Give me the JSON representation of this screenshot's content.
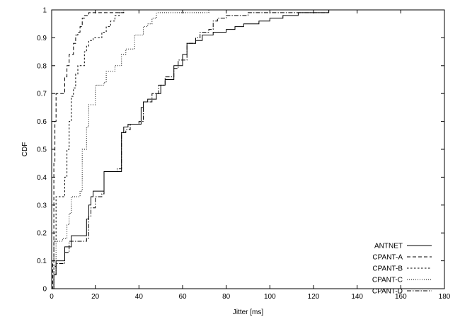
{
  "chart_data": {
    "type": "line",
    "title": "",
    "xlabel": "Jitter [ms]",
    "ylabel": "CDF",
    "xlim": [
      0,
      180
    ],
    "ylim": [
      0,
      1
    ],
    "xticks": [
      "0",
      "20",
      "40",
      "60",
      "80",
      "100",
      "120",
      "140",
      "160",
      "180"
    ],
    "yticks": [
      "0",
      "0.1",
      "0.2",
      "0.3",
      "0.4",
      "0.5",
      "0.6",
      "0.7",
      "0.8",
      "0.9",
      "1"
    ],
    "grid": false,
    "legend_position": "bottom-right",
    "series": [
      {
        "name": "ANTNET",
        "dash": "",
        "step": true,
        "points": [
          [
            0,
            0
          ],
          [
            1,
            0.05
          ],
          [
            2,
            0.1
          ],
          [
            5,
            0.1
          ],
          [
            6,
            0.15
          ],
          [
            9,
            0.19
          ],
          [
            15,
            0.19
          ],
          [
            16,
            0.25
          ],
          [
            17,
            0.3
          ],
          [
            18,
            0.33
          ],
          [
            19,
            0.35
          ],
          [
            23,
            0.35
          ],
          [
            24,
            0.42
          ],
          [
            31,
            0.42
          ],
          [
            32,
            0.56
          ],
          [
            33,
            0.58
          ],
          [
            35,
            0.59
          ],
          [
            40,
            0.59
          ],
          [
            41,
            0.65
          ],
          [
            42,
            0.67
          ],
          [
            44,
            0.68
          ],
          [
            48,
            0.7
          ],
          [
            50,
            0.73
          ],
          [
            52,
            0.75
          ],
          [
            55,
            0.75
          ],
          [
            56,
            0.8
          ],
          [
            60,
            0.84
          ],
          [
            62,
            0.88
          ],
          [
            66,
            0.89
          ],
          [
            69,
            0.91
          ],
          [
            72,
            0.91
          ],
          [
            74,
            0.92
          ],
          [
            80,
            0.93
          ],
          [
            84,
            0.94
          ],
          [
            88,
            0.95
          ],
          [
            92,
            0.95
          ],
          [
            95,
            0.96
          ],
          [
            100,
            0.97
          ],
          [
            106,
            0.98
          ],
          [
            113,
            0.99
          ],
          [
            127,
            1
          ],
          [
            180,
            1
          ]
        ]
      },
      {
        "name": "CPANT-A",
        "dash": "5,3",
        "step": true,
        "points": [
          [
            0,
            0
          ],
          [
            0.5,
            0.1
          ],
          [
            1,
            0.45
          ],
          [
            1.5,
            0.6
          ],
          [
            2,
            0.7
          ],
          [
            5,
            0.7
          ],
          [
            6,
            0.76
          ],
          [
            7,
            0.8
          ],
          [
            8,
            0.84
          ],
          [
            9,
            0.84
          ],
          [
            10,
            0.88
          ],
          [
            11,
            0.91
          ],
          [
            12,
            0.92
          ],
          [
            13,
            0.94
          ],
          [
            14,
            0.97
          ],
          [
            15,
            0.98
          ],
          [
            17,
            0.99
          ],
          [
            33,
            1
          ],
          [
            180,
            1
          ]
        ]
      },
      {
        "name": "CPANT-B",
        "dash": "2.5,2.5",
        "step": true,
        "points": [
          [
            0,
            0
          ],
          [
            1,
            0.17
          ],
          [
            2,
            0.33
          ],
          [
            5,
            0.33
          ],
          [
            6,
            0.4
          ],
          [
            7,
            0.5
          ],
          [
            8,
            0.6
          ],
          [
            9,
            0.69
          ],
          [
            10,
            0.72
          ],
          [
            11,
            0.77
          ],
          [
            12,
            0.8
          ],
          [
            14,
            0.8
          ],
          [
            15,
            0.85
          ],
          [
            16,
            0.87
          ],
          [
            17,
            0.89
          ],
          [
            19,
            0.9
          ],
          [
            22,
            0.9
          ],
          [
            23,
            0.92
          ],
          [
            25,
            0.94
          ],
          [
            27,
            0.96
          ],
          [
            29,
            0.98
          ],
          [
            31,
            0.99
          ],
          [
            33,
            1
          ],
          [
            50,
            1
          ],
          [
            180,
            1
          ]
        ]
      },
      {
        "name": "CPANT-C",
        "dash": "1,2",
        "step": true,
        "points": [
          [
            0,
            0
          ],
          [
            1,
            0.08
          ],
          [
            2,
            0.17
          ],
          [
            5,
            0.18
          ],
          [
            7,
            0.23
          ],
          [
            8,
            0.27
          ],
          [
            9,
            0.33
          ],
          [
            13,
            0.35
          ],
          [
            14,
            0.5
          ],
          [
            16,
            0.58
          ],
          [
            17,
            0.66
          ],
          [
            19,
            0.66
          ],
          [
            20,
            0.73
          ],
          [
            24,
            0.74
          ],
          [
            25,
            0.78
          ],
          [
            29,
            0.8
          ],
          [
            31,
            0.8
          ],
          [
            32,
            0.84
          ],
          [
            34,
            0.86
          ],
          [
            37,
            0.86
          ],
          [
            38,
            0.91
          ],
          [
            41,
            0.91
          ],
          [
            42,
            0.94
          ],
          [
            44,
            0.95
          ],
          [
            46,
            0.97
          ],
          [
            48,
            0.99
          ],
          [
            72,
            1
          ],
          [
            180,
            1
          ]
        ]
      },
      {
        "name": "CPANT-D",
        "dash": "6,2,1.5,2",
        "step": true,
        "points": [
          [
            0,
            0
          ],
          [
            1,
            0.05
          ],
          [
            2,
            0.09
          ],
          [
            5,
            0.09
          ],
          [
            6,
            0.13
          ],
          [
            8,
            0.17
          ],
          [
            16,
            0.18
          ],
          [
            17,
            0.26
          ],
          [
            18,
            0.29
          ],
          [
            20,
            0.33
          ],
          [
            23,
            0.34
          ],
          [
            24,
            0.42
          ],
          [
            30,
            0.43
          ],
          [
            32,
            0.56
          ],
          [
            34,
            0.57
          ],
          [
            36,
            0.59
          ],
          [
            40,
            0.6
          ],
          [
            42,
            0.67
          ],
          [
            46,
            0.7
          ],
          [
            49,
            0.73
          ],
          [
            52,
            0.76
          ],
          [
            56,
            0.79
          ],
          [
            58,
            0.82
          ],
          [
            62,
            0.88
          ],
          [
            66,
            0.9
          ],
          [
            68,
            0.92
          ],
          [
            72,
            0.93
          ],
          [
            74,
            0.96
          ],
          [
            76,
            0.97
          ],
          [
            80,
            0.98
          ],
          [
            90,
            0.99
          ],
          [
            127,
            1
          ],
          [
            180,
            1
          ]
        ]
      }
    ]
  }
}
